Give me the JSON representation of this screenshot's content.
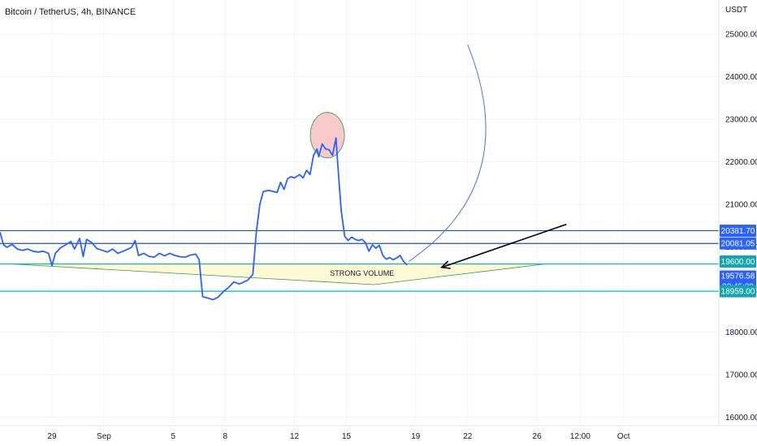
{
  "header": {
    "symbol_title": "Bitcoin / TetherUS, 4h, BINANCE"
  },
  "colors": {
    "price_line": "#2962ff",
    "level_line": "#1e4fc9",
    "teal_line": "#12b3b3",
    "badge_blue": "#2962ff",
    "badge_teal": "#13a5b0",
    "grid": "#f0f3fa",
    "triangle_fill": "#fff9d6",
    "triangle_stroke": "#2ea043",
    "circle_fill": "#f8caca",
    "circle_stroke": "#3a9a3a",
    "arc": "#4a74e0",
    "arrow": "#000000"
  },
  "chart_data": {
    "type": "line",
    "title": "Bitcoin / TetherUS, 4h, BINANCE",
    "y_unit": "USDT",
    "ylim": [
      15800,
      25800
    ],
    "y_ticks": [
      "25000.00",
      "24000.00",
      "23000.00",
      "22000.00",
      "21000.00",
      "20000.00",
      "19000.00",
      "18000.00",
      "17000.00",
      "16000.00"
    ],
    "y_tick_values": [
      25000,
      24000,
      23000,
      22000,
      21000,
      20000,
      19000,
      18000,
      17000,
      16000
    ],
    "xlim": [
      -1,
      40.5
    ],
    "x_ticks": [
      {
        "label": "29",
        "x": 2
      },
      {
        "label": "Sep",
        "x": 5
      },
      {
        "label": "5",
        "x": 9
      },
      {
        "label": "8",
        "x": 12
      },
      {
        "label": "12",
        "x": 16
      },
      {
        "label": "15",
        "x": 19
      },
      {
        "label": "19",
        "x": 23
      },
      {
        "label": "22",
        "x": 26
      },
      {
        "label": "26",
        "x": 30
      },
      {
        "label": "12:00",
        "x": 32.5
      },
      {
        "label": "Oct",
        "x": 35
      }
    ],
    "grid": true,
    "series": [
      {
        "points": [
          [
            -1.0,
            20350
          ],
          [
            -0.8,
            20050
          ],
          [
            -0.6,
            19990
          ],
          [
            -0.3,
            20060
          ],
          [
            0.0,
            19950
          ],
          [
            0.3,
            19920
          ],
          [
            0.6,
            19950
          ],
          [
            0.9,
            19900
          ],
          [
            1.2,
            19880
          ],
          [
            1.5,
            19900
          ],
          [
            1.8,
            19850
          ],
          [
            2.0,
            19560
          ],
          [
            2.2,
            19850
          ],
          [
            2.5,
            19980
          ],
          [
            2.8,
            20050
          ],
          [
            3.1,
            20130
          ],
          [
            3.3,
            19950
          ],
          [
            3.6,
            20200
          ],
          [
            3.8,
            19770
          ],
          [
            4.0,
            20180
          ],
          [
            4.3,
            20100
          ],
          [
            4.6,
            19960
          ],
          [
            4.9,
            19920
          ],
          [
            5.2,
            19880
          ],
          [
            5.5,
            19950
          ],
          [
            5.8,
            19850
          ],
          [
            6.1,
            19900
          ],
          [
            6.4,
            19950
          ],
          [
            6.6,
            19990
          ],
          [
            6.8,
            20150
          ],
          [
            7.0,
            19800
          ],
          [
            7.3,
            19850
          ],
          [
            7.6,
            19780
          ],
          [
            7.9,
            19760
          ],
          [
            8.2,
            19850
          ],
          [
            8.5,
            19790
          ],
          [
            8.8,
            19850
          ],
          [
            9.1,
            19800
          ],
          [
            9.4,
            19770
          ],
          [
            9.7,
            19760
          ],
          [
            10.0,
            19810
          ],
          [
            10.3,
            19830
          ],
          [
            10.5,
            19700
          ],
          [
            10.7,
            18830
          ],
          [
            11.0,
            18800
          ],
          [
            11.3,
            18760
          ],
          [
            11.6,
            18820
          ],
          [
            11.9,
            18950
          ],
          [
            12.2,
            19050
          ],
          [
            12.5,
            19180
          ],
          [
            12.8,
            19130
          ],
          [
            13.0,
            19160
          ],
          [
            13.3,
            19220
          ],
          [
            13.6,
            19350
          ],
          [
            13.8,
            20350
          ],
          [
            14.0,
            21000
          ],
          [
            14.2,
            21300
          ],
          [
            14.5,
            21330
          ],
          [
            14.8,
            21300
          ],
          [
            15.0,
            21280
          ],
          [
            15.2,
            21520
          ],
          [
            15.4,
            21350
          ],
          [
            15.6,
            21600
          ],
          [
            15.8,
            21650
          ],
          [
            16.0,
            21620
          ],
          [
            16.3,
            21700
          ],
          [
            16.5,
            21620
          ],
          [
            16.7,
            21800
          ],
          [
            16.9,
            21700
          ],
          [
            17.1,
            22150
          ],
          [
            17.3,
            22300
          ],
          [
            17.4,
            22120
          ],
          [
            17.6,
            22420
          ],
          [
            17.8,
            22300
          ],
          [
            18.0,
            22280
          ],
          [
            18.2,
            22150
          ],
          [
            18.4,
            22560
          ],
          [
            18.5,
            21950
          ],
          [
            18.7,
            20850
          ],
          [
            18.9,
            20250
          ],
          [
            19.1,
            20150
          ],
          [
            19.3,
            20230
          ],
          [
            19.5,
            20180
          ],
          [
            19.7,
            20150
          ],
          [
            19.9,
            20180
          ],
          [
            20.1,
            20100
          ],
          [
            20.3,
            19900
          ],
          [
            20.5,
            20050
          ],
          [
            20.7,
            19970
          ],
          [
            20.9,
            20040
          ],
          [
            21.1,
            19800
          ],
          [
            21.3,
            19710
          ],
          [
            21.5,
            19750
          ],
          [
            21.7,
            19700
          ],
          [
            21.9,
            19740
          ],
          [
            22.1,
            19800
          ],
          [
            22.3,
            19660
          ],
          [
            22.5,
            19575
          ]
        ]
      }
    ],
    "annotations": {
      "text": "STRONG VOLUME",
      "horizontal_levels": [
        {
          "value": 20381.7,
          "label": "20381.70",
          "style": "blue"
        },
        {
          "value": 20081.05,
          "label": "20081.05",
          "style": "blue"
        },
        {
          "value": 19600.0,
          "label": "19600.00",
          "style": "teal"
        },
        {
          "value": 18959.0,
          "label": "18959.00",
          "style": "teal"
        }
      ],
      "current_price": {
        "label": "19576.58",
        "countdown": "03:45:29"
      }
    }
  }
}
